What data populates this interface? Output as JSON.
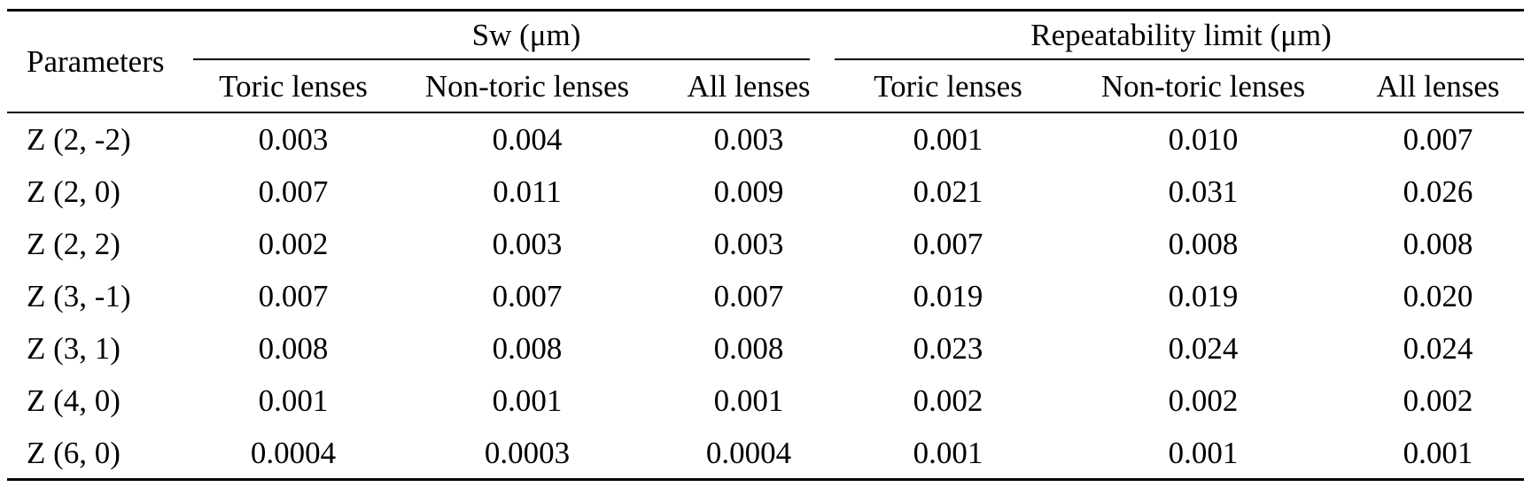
{
  "table": {
    "header": {
      "parameters": "Parameters",
      "group_sw": "Sw (μm)",
      "group_rl": "Repeatability limit (μm)",
      "sub": [
        "Toric lenses",
        "Non-toric lenses",
        "All lenses",
        "Toric lenses",
        "Non-toric lenses",
        "All lenses"
      ]
    },
    "rows": [
      {
        "param": "Z (2, -2)",
        "values": [
          "0.003",
          "0.004",
          "0.003",
          "0.001",
          "0.010",
          "0.007"
        ]
      },
      {
        "param": "Z (2, 0)",
        "values": [
          "0.007",
          "0.011",
          "0.009",
          "0.021",
          "0.031",
          "0.026"
        ]
      },
      {
        "param": "Z (2, 2)",
        "values": [
          "0.002",
          "0.003",
          "0.003",
          "0.007",
          "0.008",
          "0.008"
        ]
      },
      {
        "param": "Z (3, -1)",
        "values": [
          "0.007",
          "0.007",
          "0.007",
          "0.019",
          "0.019",
          "0.020"
        ]
      },
      {
        "param": "Z (3, 1)",
        "values": [
          "0.008",
          "0.008",
          "0.008",
          "0.023",
          "0.024",
          "0.024"
        ]
      },
      {
        "param": "Z (4, 0)",
        "values": [
          "0.001",
          "0.001",
          "0.001",
          "0.002",
          "0.002",
          "0.002"
        ]
      },
      {
        "param": "Z (6, 0)",
        "values": [
          "0.0004",
          "0.0003",
          "0.0004",
          "0.001",
          "0.001",
          "0.001"
        ]
      }
    ]
  }
}
